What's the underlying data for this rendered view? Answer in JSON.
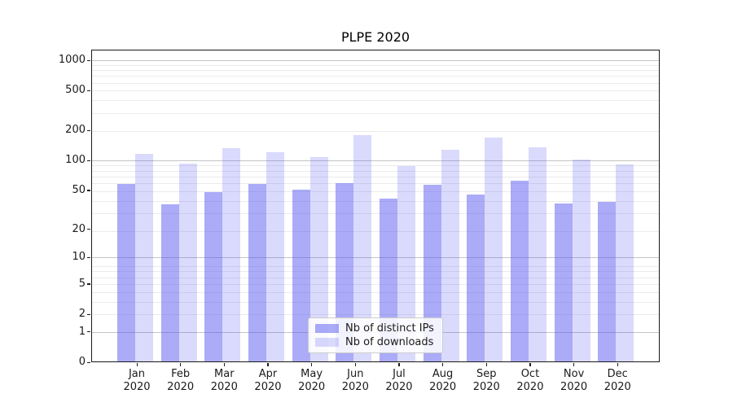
{
  "chart_data": {
    "type": "bar",
    "title": "PLPE 2020",
    "y_scale": "log(1+y)",
    "grid": true,
    "legend_position": "lower center",
    "categories": [
      "Jan",
      "Feb",
      "Mar",
      "Apr",
      "May",
      "Jun",
      "Jul",
      "Aug",
      "Sep",
      "Oct",
      "Nov",
      "Dec"
    ],
    "x_tick_second_line": "2020",
    "series": [
      {
        "name": "Nb of distinct IPs",
        "color": "rgba(80,80,240,0.48)",
        "values": [
          58,
          36,
          48,
          58,
          51,
          59,
          41,
          57,
          45,
          63,
          37,
          38
        ]
      },
      {
        "name": "Nb of downloads",
        "color": "rgba(80,80,240,0.21)",
        "values": [
          117,
          94,
          132,
          122,
          109,
          180,
          88,
          128,
          170,
          137,
          102,
          91
        ]
      }
    ],
    "y_ticks": [
      1000,
      500,
      200,
      100,
      50,
      20,
      10,
      5,
      2,
      1,
      0
    ],
    "y_major_gridlines": [
      1,
      10,
      100,
      1000
    ],
    "ylim": [
      0,
      1255
    ]
  },
  "colors": {
    "axis": "#1a1a1a",
    "major_grid": "#c4c4c4",
    "minor_grid": "#ebebeb",
    "legend_border": "#cccccc",
    "background": "#ffffff"
  }
}
